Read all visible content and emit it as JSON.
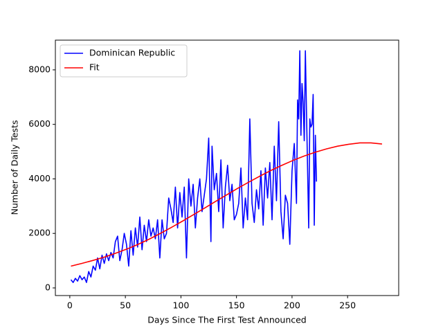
{
  "chart_data": {
    "type": "line",
    "xlabel": "Days Since The First Test Announced",
    "ylabel": "Number of Daily Tests",
    "xlim": [
      -13,
      296
    ],
    "ylim": [
      -280,
      9090
    ],
    "xticks": [
      0,
      50,
      100,
      150,
      200,
      250
    ],
    "yticks": [
      0,
      2000,
      4000,
      6000,
      8000
    ],
    "legend": "upper-left",
    "series": [
      {
        "name": "Dominican Republic",
        "color": "#0000ff",
        "x": [
          1,
          3,
          5,
          7,
          9,
          11,
          13,
          15,
          17,
          19,
          21,
          23,
          25,
          27,
          29,
          31,
          33,
          35,
          37,
          39,
          41,
          43,
          45,
          47,
          49,
          51,
          53,
          55,
          57,
          59,
          61,
          63,
          65,
          67,
          69,
          71,
          73,
          75,
          77,
          79,
          81,
          83,
          85,
          87,
          89,
          91,
          93,
          95,
          97,
          99,
          101,
          103,
          105,
          107,
          109,
          111,
          113,
          115,
          117,
          119,
          121,
          123,
          125,
          127,
          128,
          130,
          132,
          134,
          136,
          138,
          140,
          142,
          144,
          146,
          148,
          150,
          152,
          154,
          156,
          158,
          160,
          162,
          164,
          166,
          168,
          170,
          172,
          174,
          176,
          178,
          180,
          182,
          184,
          186,
          188,
          190,
          192,
          194,
          196,
          198,
          200,
          202,
          204,
          205,
          206,
          207,
          208,
          209,
          210,
          211,
          212,
          213,
          215,
          216,
          217,
          218,
          219,
          220,
          221,
          222
        ],
        "values": [
          300,
          200,
          350,
          250,
          450,
          300,
          400,
          200,
          600,
          400,
          800,
          650,
          1100,
          700,
          1200,
          900,
          1250,
          1000,
          1300,
          1100,
          1700,
          1900,
          1000,
          1400,
          2000,
          1600,
          800,
          2100,
          1200,
          2200,
          1500,
          2600,
          1400,
          2300,
          1700,
          2500,
          1900,
          2200,
          1800,
          2500,
          1100,
          2500,
          1800,
          2000,
          3300,
          2900,
          2400,
          3700,
          2200,
          3500,
          2600,
          3700,
          1100,
          4000,
          3000,
          3800,
          2200,
          3300,
          4000,
          2800,
          3400,
          4000,
          5500,
          1700,
          5200,
          3600,
          4200,
          2800,
          4700,
          2200,
          3700,
          4500,
          3200,
          3800,
          2500,
          2700,
          3100,
          4400,
          2200,
          3300,
          2500,
          6200,
          3100,
          2400,
          3600,
          2900,
          4300,
          2300,
          4400,
          3300,
          4600,
          2500,
          5200,
          3200,
          6100,
          2800,
          1800,
          3400,
          3100,
          1600,
          4300,
          5300,
          3100,
          6900,
          6200,
          8700,
          5600,
          7500,
          6800,
          5400,
          8700,
          6500,
          2200,
          6200,
          5900,
          6000,
          7100,
          2300,
          5600,
          3900
        ]
      },
      {
        "name": "Fit",
        "color": "#ff0000",
        "x": [
          1,
          11,
          21,
          31,
          41,
          51,
          61,
          71,
          81,
          91,
          101,
          111,
          121,
          131,
          141,
          151,
          161,
          171,
          181,
          191,
          201,
          211,
          221,
          231,
          241,
          251,
          261,
          271,
          281
        ],
        "values": [
          800,
          900,
          1010,
          1130,
          1270,
          1420,
          1590,
          1780,
          1990,
          2210,
          2440,
          2680,
          2920,
          3170,
          3410,
          3650,
          3880,
          4100,
          4310,
          4500,
          4680,
          4840,
          4980,
          5100,
          5200,
          5270,
          5320,
          5320,
          5280
        ]
      }
    ]
  }
}
